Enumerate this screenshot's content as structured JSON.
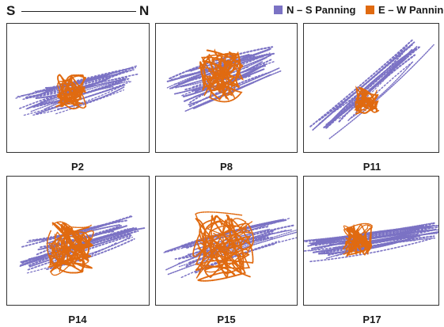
{
  "header": {
    "axis_left": "S",
    "axis_right": "N",
    "legend": [
      {
        "label": "N – S Panning",
        "color": "#7b72c4"
      },
      {
        "label": "E – W Panning",
        "color": "#e06a10"
      }
    ]
  },
  "panels": [
    {
      "label": "P2"
    },
    {
      "label": "P8"
    },
    {
      "label": "P11"
    },
    {
      "label": "P14"
    },
    {
      "label": "P15"
    },
    {
      "label": "P17"
    }
  ]
}
